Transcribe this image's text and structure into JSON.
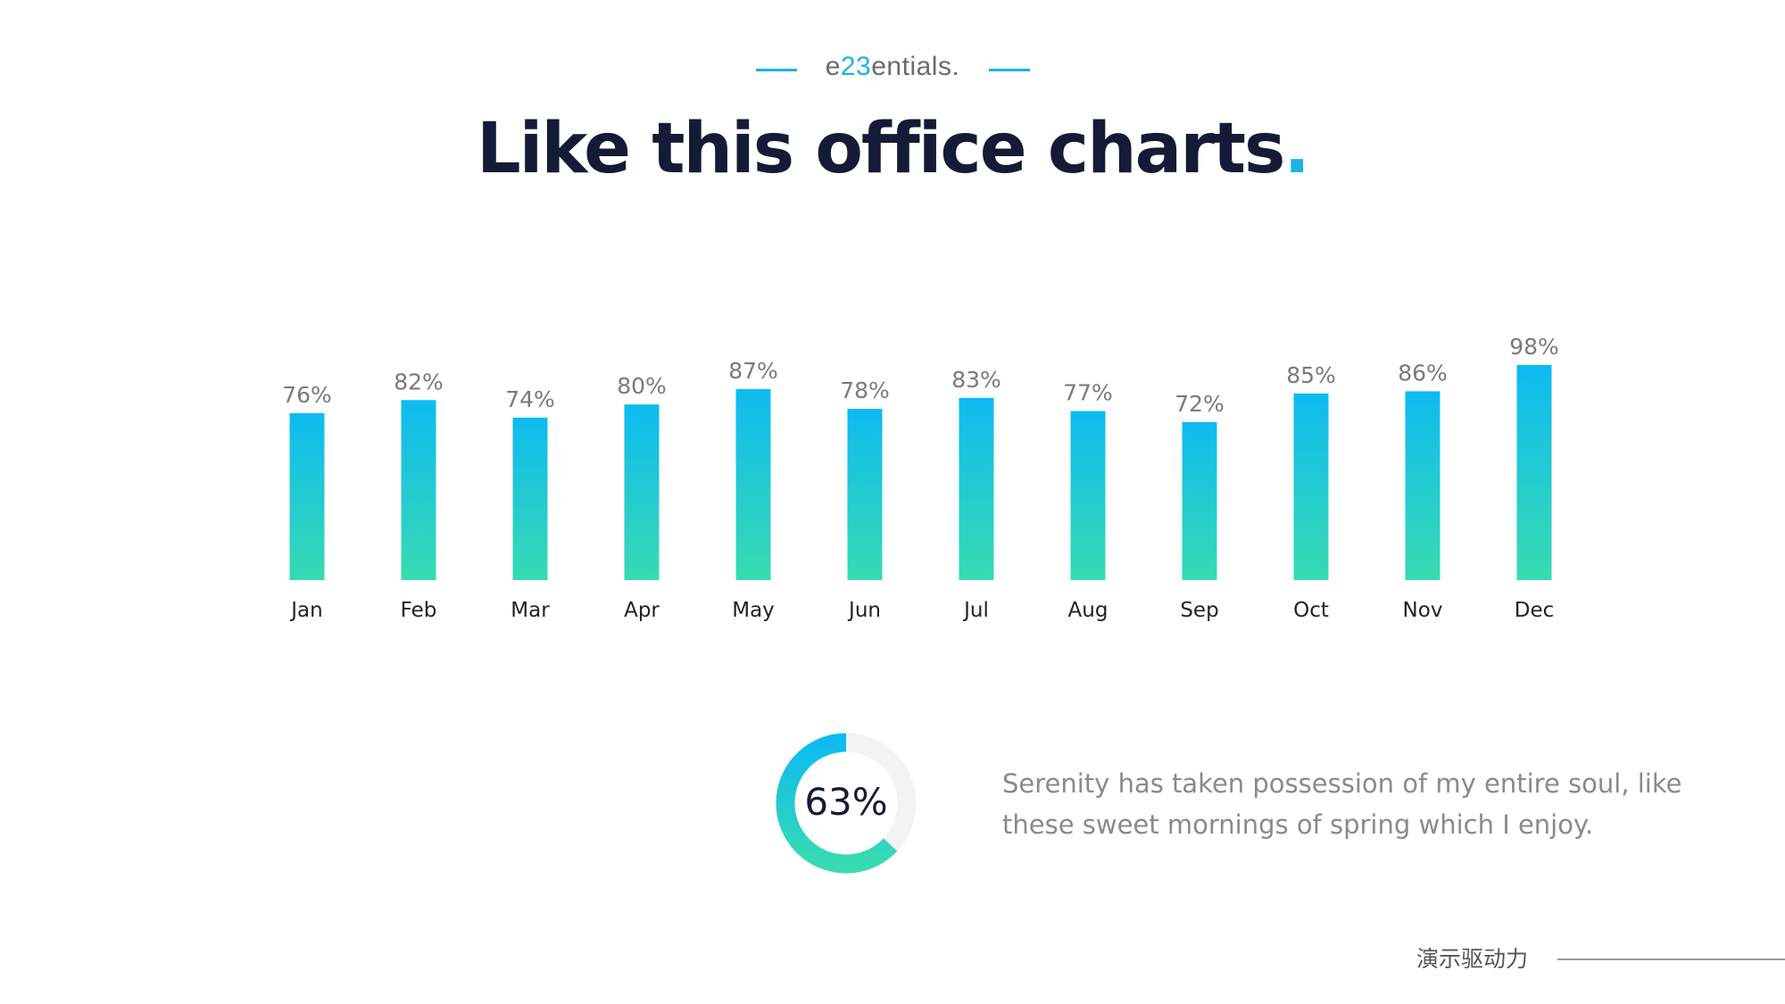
{
  "header": {
    "brand_prefix": "e",
    "brand_highlight": "23",
    "brand_suffix": "entials.",
    "title_text": "Like this office charts",
    "title_dot": "."
  },
  "chart_data": {
    "type": "bar",
    "title": "",
    "xlabel": "",
    "ylabel": "",
    "ylim": [
      0,
      100
    ],
    "grid": false,
    "categories": [
      "Jan",
      "Feb",
      "Mar",
      "Apr",
      "May",
      "Jun",
      "Jul",
      "Aug",
      "Sep",
      "Oct",
      "Nov",
      "Dec"
    ],
    "values": [
      76,
      82,
      74,
      80,
      87,
      78,
      83,
      77,
      72,
      85,
      86,
      98
    ],
    "labels": [
      "76%",
      "82%",
      "74%",
      "80%",
      "87%",
      "78%",
      "83%",
      "77%",
      "72%",
      "85%",
      "86%",
      "98%"
    ],
    "colors": {
      "top": "#0ebbf1",
      "bottom": "#37dbb1"
    }
  },
  "donut": {
    "value": 63,
    "label": "63%",
    "color_start": "#0ebbf1",
    "color_end": "#37dbb1",
    "track_color": "#f3f3f3"
  },
  "description": "Serenity has taken possession of my entire soul, like these sweet mornings of spring which I enjoy.",
  "footer": {
    "text": "演示驱动力"
  },
  "accent_color": "#1bb3e6"
}
